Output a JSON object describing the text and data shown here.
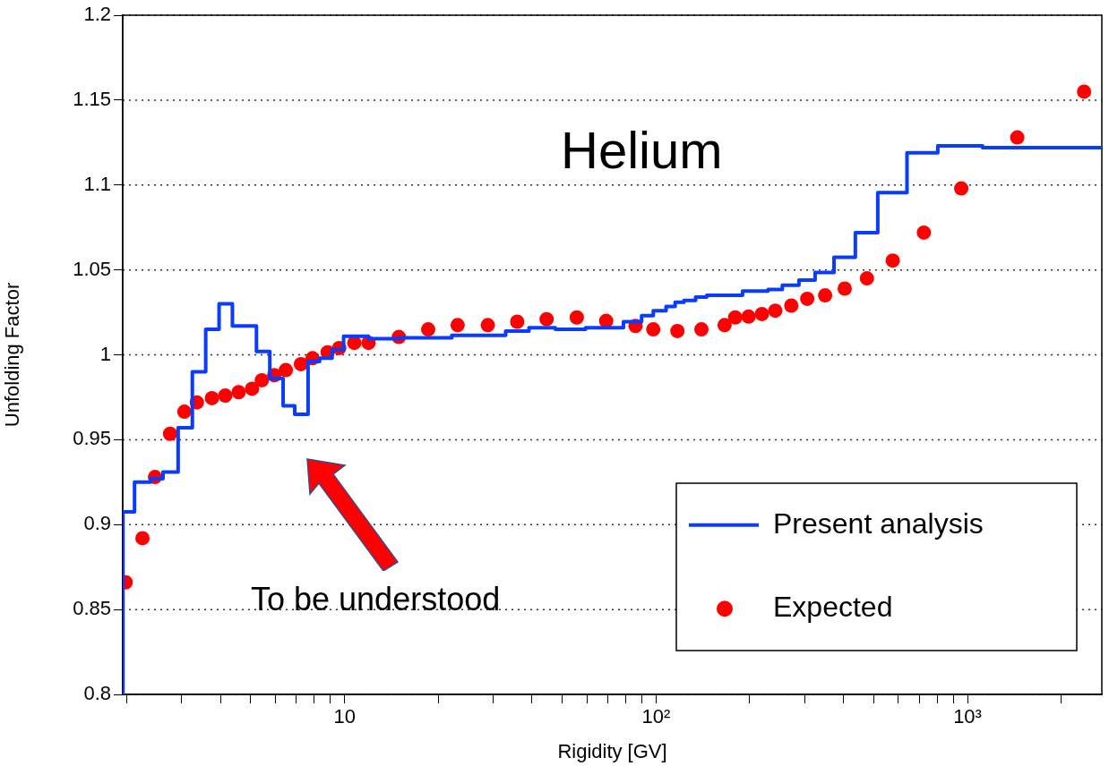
{
  "chart_data": {
    "type": "scatter",
    "title": "Helium",
    "xlabel": "Rigidity [GV]",
    "ylabel": "Unfolding Factor",
    "log": "x",
    "grid": "y",
    "legend": "bottom right",
    "xlim": [
      1.94,
      2700
    ],
    "xticks": [
      {
        "value": 2,
        "label": null
      },
      {
        "value": 3,
        "label": null
      },
      {
        "value": 4,
        "label": null
      },
      {
        "value": 5,
        "label": null
      },
      {
        "value": 6,
        "label": null
      },
      {
        "value": 7,
        "label": null
      },
      {
        "value": 8,
        "label": null
      },
      {
        "value": 9,
        "label": null
      },
      10,
      {
        "value": 20,
        "label": null
      },
      {
        "value": 30,
        "label": null
      },
      {
        "value": 40,
        "label": null
      },
      {
        "value": 50,
        "label": null
      },
      {
        "value": 60,
        "label": null
      },
      {
        "value": 70,
        "label": null
      },
      {
        "value": 80,
        "label": null
      },
      {
        "value": 90,
        "label": null
      },
      {
        "value": 100,
        "label": "10²"
      },
      {
        "value": 200,
        "label": null
      },
      {
        "value": 300,
        "label": null
      },
      {
        "value": 400,
        "label": null
      },
      {
        "value": 500,
        "label": null
      },
      {
        "value": 600,
        "label": null
      },
      {
        "value": 700,
        "label": null
      },
      {
        "value": 800,
        "label": null
      },
      {
        "value": 900,
        "label": null
      },
      {
        "value": 1000,
        "label": "10³"
      },
      {
        "value": 2000,
        "label": null
      }
    ],
    "ylim": [
      0.8,
      1.2
    ],
    "yticks": [
      0.8,
      0.85,
      0.9,
      0.95,
      1,
      1.05,
      1.1,
      1.15,
      1.2
    ],
    "annotations": [
      "To be understood"
    ],
    "series": [
      {
        "name": "Present analysis",
        "type": "step",
        "color": "#0a3cff",
        "marker": "none",
        "line_style": "solid",
        "x": [
          1.943,
          1.943,
          2.117,
          2.382,
          2.613,
          2.922,
          3.246,
          3.583,
          3.955,
          4.365,
          5.214,
          5.754,
          6.35,
          6.918,
          7.637,
          8.318,
          9.12,
          9.93,
          11.94,
          15.0,
          22.1,
          32.9,
          39.1,
          47.5,
          59.4,
          78.6,
          89.9,
          98.0,
          107.7,
          115.2,
          123.0,
          134.0,
          145.5,
          189.6,
          228.9,
          254.4,
          287.7,
          324.2,
          372.8,
          436.5,
          515.2,
          639.4,
          803,
          1118,
          1768,
          2700
        ],
        "values": [
          0.8,
          0.885,
          0.9075,
          0.925,
          0.927,
          0.931,
          0.957,
          0.99,
          1.015,
          1.03,
          1.017,
          1.002,
          0.986,
          0.97,
          0.965,
          0.996,
          0.998,
          1.003,
          1.011,
          1.0095,
          1.01,
          1.0115,
          1.014,
          1.016,
          1.015,
          1.016,
          1.0195,
          1.023,
          1.026,
          1.0285,
          1.031,
          1.032,
          1.034,
          1.035,
          1.0375,
          1.0385,
          1.041,
          1.044,
          1.0485,
          1.0575,
          1.072,
          1.0955,
          1.119,
          1.123,
          1.122,
          1.122
        ]
      },
      {
        "name": "Expected",
        "color": "#ff0000",
        "marker": "circle",
        "x": [
          1.982,
          2.245,
          2.462,
          2.754,
          3.06,
          3.356,
          3.753,
          4.14,
          4.571,
          5.046,
          5.425,
          5.948,
          6.478,
          7.244,
          7.892,
          8.824,
          9.614,
          10.75,
          11.94,
          14.94,
          18.56,
          23.07,
          28.84,
          35.84,
          44.54,
          55.68,
          69.18,
          85.96,
          98.0,
          117.1,
          139.9,
          166.0,
          179.6,
          198.2,
          218.8,
          241.5,
          271.9,
          305.9,
          349.1,
          403.5,
          475.5,
          575.4,
          724.4,
          955,
          1445,
          2368
        ],
        "values": [
          0.866,
          0.892,
          0.928,
          0.9535,
          0.9665,
          0.972,
          0.9745,
          0.976,
          0.978,
          0.98,
          0.985,
          0.988,
          0.991,
          0.9945,
          0.998,
          1.0015,
          1.004,
          1.007,
          1.007,
          1.0105,
          1.015,
          1.0175,
          1.0175,
          1.0195,
          1.021,
          1.022,
          1.02,
          1.017,
          1.015,
          1.014,
          1.015,
          1.0175,
          1.022,
          1.0225,
          1.024,
          1.026,
          1.029,
          1.033,
          1.035,
          1.039,
          1.045,
          1.0555,
          1.072,
          1.098,
          1.128,
          1.155
        ]
      }
    ]
  }
}
